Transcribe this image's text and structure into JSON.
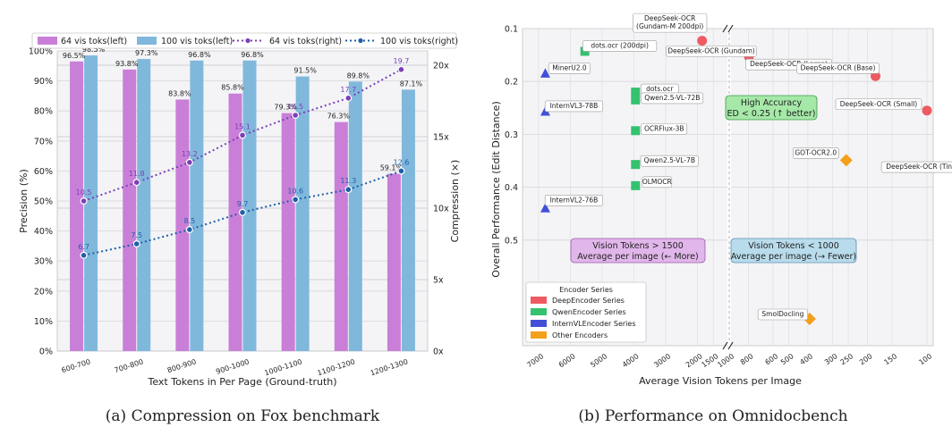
{
  "colors": {
    "bar64": "#c97fd8",
    "bar100": "#80b8dc",
    "line64": "#7b3fb5",
    "line100": "#1f5fa8",
    "deep": "#ee5a62",
    "qwen": "#34c26f",
    "intern": "#4250d8",
    "other": "#f3a01a"
  },
  "chart_data": [
    {
      "type": "bar",
      "caption": "(a)  Compression on Fox benchmark",
      "xlabel": "Text Tokens in Per Page (Ground-truth)",
      "ylabel": "Precision (%)",
      "ylabel_right": "Compression (×)",
      "categories": [
        "600-700",
        "700-800",
        "800-900",
        "900-1000",
        "1000-1100",
        "1100-1200",
        "1200-1300"
      ],
      "ylim": [
        0,
        100
      ],
      "y_ticks": [
        "0%",
        "10%",
        "20%",
        "30%",
        "40%",
        "50%",
        "60%",
        "70%",
        "80%",
        "90%",
        "100%"
      ],
      "ylim_right": [
        0,
        21
      ],
      "y_right_ticks": [
        "0x",
        "5x",
        "10x",
        "15x",
        "20x"
      ],
      "legend_position": "top",
      "series": [
        {
          "name": "64 vis toks(left)",
          "kind": "bar",
          "axis": "left",
          "values": [
            96.5,
            93.8,
            83.8,
            85.8,
            79.3,
            76.3,
            59.1
          ],
          "labels": [
            "96.5%",
            "93.8%",
            "83.8%",
            "85.8%",
            "79.3%",
            "76.3%",
            "59.1%"
          ]
        },
        {
          "name": "100 vis toks(left)",
          "kind": "bar",
          "axis": "left",
          "values": [
            98.5,
            97.3,
            96.8,
            96.8,
            91.5,
            89.8,
            87.1
          ],
          "labels": [
            "98.5%",
            "97.3%",
            "96.8%",
            "96.8%",
            "91.5%",
            "89.8%",
            "87.1%"
          ]
        },
        {
          "name": "64 vis toks(right)",
          "kind": "line",
          "axis": "right",
          "values": [
            10.5,
            11.8,
            13.2,
            15.1,
            16.5,
            17.7,
            19.7
          ],
          "labels": [
            "10.5",
            "11.8",
            "13.2",
            "15.1",
            "16.5",
            "17.7",
            "19.7"
          ]
        },
        {
          "name": "100 vis toks(right)",
          "kind": "line",
          "axis": "right",
          "values": [
            6.7,
            7.5,
            8.5,
            9.7,
            10.6,
            11.3,
            12.6
          ],
          "labels": [
            "6.7",
            "7.5",
            "8.5",
            "9.7",
            "10.6",
            "11.3",
            "12.6"
          ]
        }
      ]
    },
    {
      "type": "scatter",
      "caption": "(b)  Performance on Omnidocbench",
      "xlabel": "Average Vision Tokens per Image",
      "ylabel": "Overall Performance (Edit Distance)",
      "x_scale": "broken axis (reversed)",
      "x_ticks": [
        "7000",
        "6000",
        "5000",
        "4000",
        "3000",
        "2000",
        "1500",
        "1000",
        "800",
        "600",
        "500",
        "400",
        "300",
        "250",
        "200",
        "150",
        "100"
      ],
      "ylim": [
        0.1,
        0.6
      ],
      "y_ticks": [
        "0.1",
        "0.2",
        "0.3",
        "0.4",
        "0.5"
      ],
      "legend_title": "Encoder Series",
      "legend": [
        "DeepEncoder Series",
        "QwenEncoder Series",
        "InternVLEncoder Series",
        "Other Encoders"
      ],
      "legend_position": "bottom-left",
      "annotations": [
        {
          "text": [
            "High Accuracy",
            "ED < 0.25 (↑ better)"
          ],
          "style": "green"
        },
        {
          "text": [
            "Vision Tokens > 1500",
            "Average per image (← More)"
          ],
          "style": "purple"
        },
        {
          "text": [
            "Vision Tokens < 1000",
            "Average per image (→ Fewer)"
          ],
          "style": "blue"
        }
      ],
      "points": [
        {
          "name": "DeepSeek-OCR (Gundam-M 200dpi)",
          "label": [
            "DeepSeek-OCR",
            "(Gundam-M 200dpi)"
          ],
          "x": 1853,
          "y": 0.123,
          "series": "deep"
        },
        {
          "name": "DeepSeek-OCR (Gundam)",
          "label": [
            "DeepSeek-OCR (Gundam)"
          ],
          "x": 795,
          "y": 0.153,
          "series": "deep"
        },
        {
          "name": "DeepSeek-OCR (Large)",
          "label": [
            "DeepSeek-OCR (Large)"
          ],
          "x": 285,
          "y": 0.173,
          "series": "deep"
        },
        {
          "name": "DeepSeek-OCR (Base)",
          "label": [
            "DeepSeek-OCR (Base)"
          ],
          "x": 182,
          "y": 0.19,
          "series": "deep"
        },
        {
          "name": "DeepSeek-OCR (Small)",
          "label": [
            "DeepSeek-OCR (Small)"
          ],
          "x": 100,
          "y": 0.255,
          "series": "deep"
        },
        {
          "name": "DeepSeek-OCR (Tiny)",
          "label": [
            "DeepSeek-OCR (Tiny)"
          ],
          "x": 64,
          "y": 0.372,
          "series": "deep"
        },
        {
          "name": "dots.ocr (200dpi)",
          "label": [
            "dots.ocr (200dpi)"
          ],
          "x": 5545,
          "y": 0.143,
          "series": "qwen"
        },
        {
          "name": "dots.ocr",
          "label": [
            "dots.ocr"
          ],
          "x": 3950,
          "y": 0.22,
          "series": "qwen"
        },
        {
          "name": "Qwen2.5-VL-72B",
          "label": [
            "Qwen2.5-VL-72B"
          ],
          "x": 3950,
          "y": 0.235,
          "series": "qwen"
        },
        {
          "name": "OCRFlux-3B",
          "label": [
            "OCRFlux-3B"
          ],
          "x": 3950,
          "y": 0.293,
          "series": "qwen"
        },
        {
          "name": "Qwen2.5-VL-7B",
          "label": [
            "Qwen2.5-VL-7B"
          ],
          "x": 3950,
          "y": 0.357,
          "series": "qwen"
        },
        {
          "name": "OLMOCR",
          "label": [
            "OLMOCR"
          ],
          "x": 3950,
          "y": 0.397,
          "series": "qwen"
        },
        {
          "name": "MinerU2.0",
          "label": [
            "MinerU2.0"
          ],
          "x": 6790,
          "y": 0.185,
          "series": "intern"
        },
        {
          "name": "InternVL3-78B",
          "label": [
            "InternVL3-78B"
          ],
          "x": 6790,
          "y": 0.257,
          "series": "intern"
        },
        {
          "name": "InternVL2-76B",
          "label": [
            "InternVL2-76B"
          ],
          "x": 6790,
          "y": 0.44,
          "series": "intern"
        },
        {
          "name": "GOT-OCR2.0",
          "label": [
            "GOT-OCR2.0"
          ],
          "x": 256,
          "y": 0.349,
          "series": "other"
        },
        {
          "name": "SmolDocling",
          "label": [
            "SmolDocling"
          ],
          "x": 392,
          "y": 0.649,
          "series": "other"
        }
      ]
    }
  ]
}
